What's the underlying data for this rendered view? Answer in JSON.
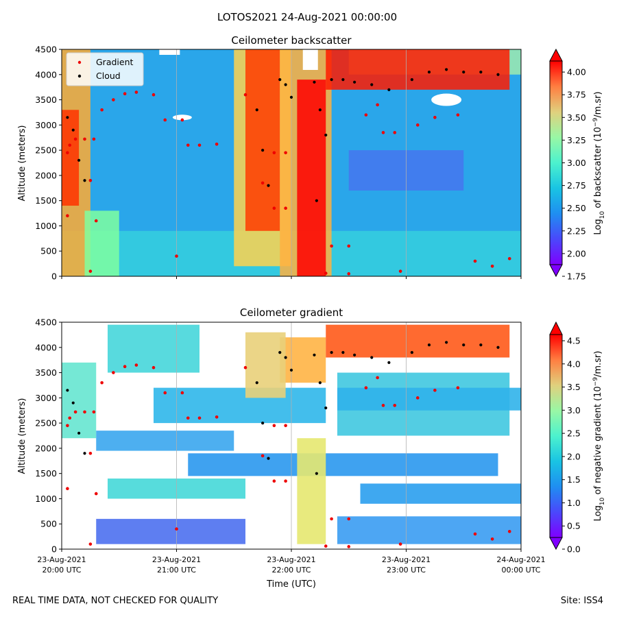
{
  "suptitle": "LOTOS2021 24-Aug-2021 00:00:00",
  "footer": {
    "left": "REAL TIME DATA, NOT CHECKED FOR QUALITY",
    "right": "Site: ISS4"
  },
  "xlabel": "Time (UTC)",
  "x_ticks": [
    {
      "date": "23-Aug-2021",
      "time": "20:00 UTC"
    },
    {
      "date": "23-Aug-2021",
      "time": "21:00 UTC"
    },
    {
      "date": "23-Aug-2021",
      "time": "22:00 UTC"
    },
    {
      "date": "23-Aug-2021",
      "time": "23:00 UTC"
    },
    {
      "date": "24-Aug-2021",
      "time": "00:00 UTC"
    }
  ],
  "legend": {
    "gradient": "Gradient",
    "cloud": "Cloud"
  },
  "colors": {
    "gradient_marker": "#ee0000",
    "cloud_marker": "#000000"
  },
  "chart_data": [
    {
      "type": "heatmap",
      "title": "Ceilometer backscatter",
      "ylabel": "Altitude (meters)",
      "ylim": [
        0,
        4500
      ],
      "yticks": [
        0,
        500,
        1000,
        1500,
        2000,
        2500,
        3000,
        3500,
        4000,
        4500
      ],
      "colorbar": {
        "label_prefix": "Log",
        "label_suffix": " of backscatter (10",
        "label_exp": "−9",
        "label_units": "/m.sr)",
        "range": [
          1.75,
          4.25
        ],
        "ticks": [
          "1.75",
          "2.00",
          "2.25",
          "2.50",
          "2.75",
          "3.00",
          "3.25",
          "3.50",
          "3.75",
          "4.00"
        ],
        "colormap": "rainbow",
        "extend": "both"
      },
      "legend_location": "upper-left",
      "gradient_points": [
        {
          "t": 20.05,
          "h": 2450
        },
        {
          "t": 20.07,
          "h": 2600
        },
        {
          "t": 20.12,
          "h": 2720
        },
        {
          "t": 20.2,
          "h": 2720
        },
        {
          "t": 20.28,
          "h": 2720
        },
        {
          "t": 20.35,
          "h": 3300
        },
        {
          "t": 20.45,
          "h": 3500
        },
        {
          "t": 20.55,
          "h": 3620
        },
        {
          "t": 20.65,
          "h": 3650
        },
        {
          "t": 20.8,
          "h": 3600
        },
        {
          "t": 20.9,
          "h": 3100
        },
        {
          "t": 21.05,
          "h": 3100
        },
        {
          "t": 21.1,
          "h": 2600
        },
        {
          "t": 21.2,
          "h": 2600
        },
        {
          "t": 21.35,
          "h": 2620
        },
        {
          "t": 21.6,
          "h": 3600
        },
        {
          "t": 21.85,
          "h": 2450
        },
        {
          "t": 21.95,
          "h": 2450
        },
        {
          "t": 21.85,
          "h": 1350
        },
        {
          "t": 21.95,
          "h": 1350
        },
        {
          "t": 21.75,
          "h": 1850
        },
        {
          "t": 22.35,
          "h": 600
        },
        {
          "t": 22.5,
          "h": 600
        },
        {
          "t": 22.3,
          "h": 60
        },
        {
          "t": 22.5,
          "h": 50
        },
        {
          "t": 22.65,
          "h": 3200
        },
        {
          "t": 22.75,
          "h": 3400
        },
        {
          "t": 22.8,
          "h": 2850
        },
        {
          "t": 22.9,
          "h": 2850
        },
        {
          "t": 23.1,
          "h": 3000
        },
        {
          "t": 23.25,
          "h": 3150
        },
        {
          "t": 23.45,
          "h": 3200
        },
        {
          "t": 23.6,
          "h": 300
        },
        {
          "t": 23.75,
          "h": 200
        },
        {
          "t": 23.9,
          "h": 350
        },
        {
          "t": 20.3,
          "h": 1100
        },
        {
          "t": 20.25,
          "h": 1900
        },
        {
          "t": 20.05,
          "h": 1200
        },
        {
          "t": 20.25,
          "h": 100
        },
        {
          "t": 22.95,
          "h": 100
        },
        {
          "t": 21.0,
          "h": 400
        }
      ],
      "cloud_points": [
        {
          "t": 20.05,
          "h": 3150
        },
        {
          "t": 20.1,
          "h": 2900
        },
        {
          "t": 20.15,
          "h": 2300
        },
        {
          "t": 20.2,
          "h": 1900
        },
        {
          "t": 21.7,
          "h": 3300
        },
        {
          "t": 21.75,
          "h": 2500
        },
        {
          "t": 21.8,
          "h": 1800
        },
        {
          "t": 21.9,
          "h": 3900
        },
        {
          "t": 21.95,
          "h": 3800
        },
        {
          "t": 22.0,
          "h": 3550
        },
        {
          "t": 22.2,
          "h": 3850
        },
        {
          "t": 22.25,
          "h": 3300
        },
        {
          "t": 22.3,
          "h": 2800
        },
        {
          "t": 22.22,
          "h": 1500
        },
        {
          "t": 22.35,
          "h": 3900
        },
        {
          "t": 22.45,
          "h": 3900
        },
        {
          "t": 22.55,
          "h": 3850
        },
        {
          "t": 22.7,
          "h": 3800
        },
        {
          "t": 22.85,
          "h": 3700
        },
        {
          "t": 23.05,
          "h": 3900
        },
        {
          "t": 23.2,
          "h": 4050
        },
        {
          "t": 23.35,
          "h": 4100
        },
        {
          "t": 23.5,
          "h": 4050
        },
        {
          "t": 23.65,
          "h": 4050
        },
        {
          "t": 23.8,
          "h": 4000
        }
      ]
    },
    {
      "type": "heatmap",
      "title": "Ceilometer gradient",
      "ylabel": "Altitude (meters)",
      "ylim": [
        0,
        4500
      ],
      "yticks": [
        0,
        500,
        1000,
        1500,
        2000,
        2500,
        3000,
        3500,
        4000,
        4500
      ],
      "colorbar": {
        "label_prefix": "Log",
        "label_suffix": " of negative gradient (10",
        "label_exp": "−9",
        "label_units": "/m.sr)",
        "range": [
          0.0,
          4.9
        ],
        "ticks": [
          "0.0",
          "0.5",
          "1.0",
          "1.5",
          "2.0",
          "2.5",
          "3.0",
          "3.5",
          "4.0",
          "4.5"
        ],
        "colormap": "rainbow",
        "extend": "both"
      }
    }
  ]
}
